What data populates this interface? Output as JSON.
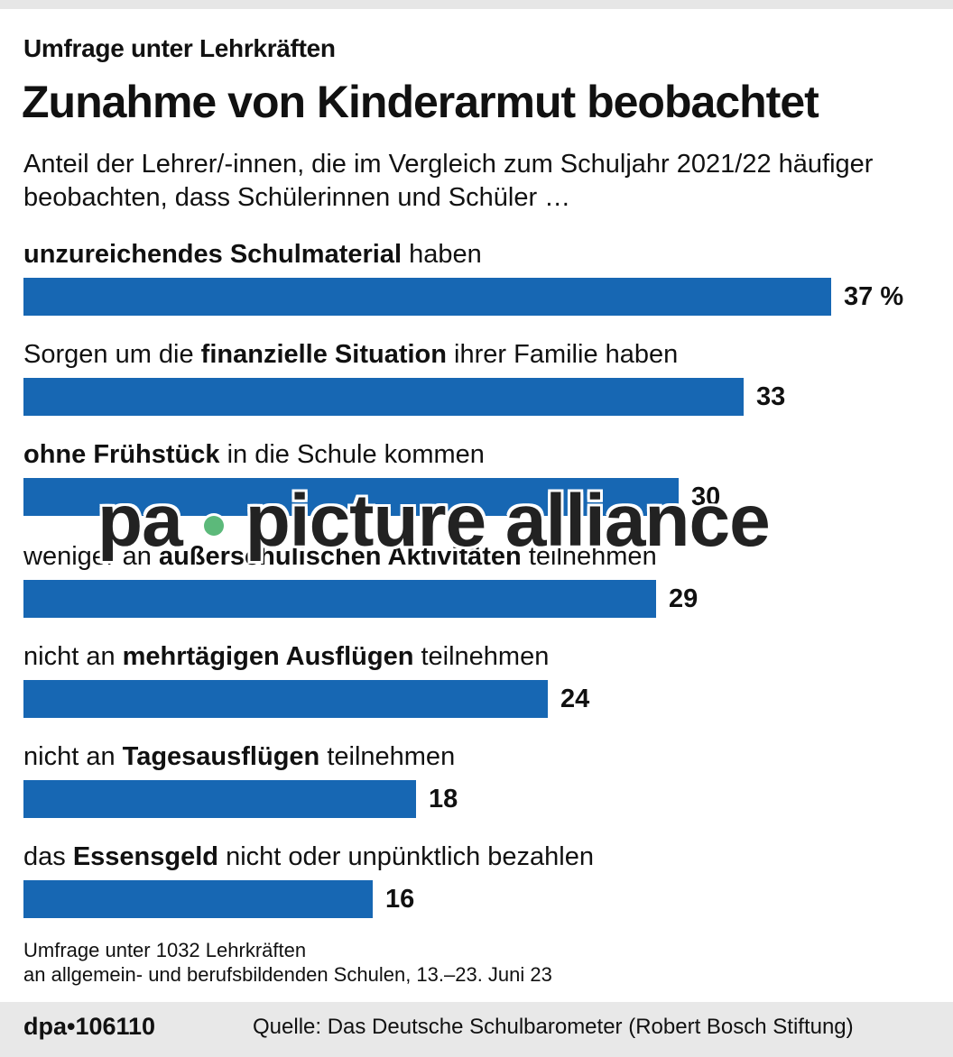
{
  "header": {
    "kicker": "Umfrage unter Lehrkräften",
    "title": "Zunahme von Kinderarmut beobachtet",
    "subtitle": "Anteil der Lehrer/-innen, die im Vergleich zum Schuljahr 2021/22 häufiger beobachten, dass Schülerinnen und Schüler …"
  },
  "rows": [
    {
      "pre": "",
      "bold": "unzureichendes Schulmaterial",
      "post": " haben",
      "value_label": "37 %"
    },
    {
      "pre": "Sorgen um die ",
      "bold": "finanzielle Situation",
      "post": " ihrer Familie haben",
      "value_label": "33"
    },
    {
      "pre": "",
      "bold": "ohne Frühstück",
      "post": " in die Schule kommen",
      "value_label": "30"
    },
    {
      "pre": "weniger an ",
      "bold": "außerschulischen Aktivitäten",
      "post": " teilnehmen",
      "value_label": "29"
    },
    {
      "pre": "nicht an ",
      "bold": "mehrtägigen Ausflügen",
      "post": " teilnehmen",
      "value_label": "24"
    },
    {
      "pre": "nicht an ",
      "bold": "Tagesausflügen",
      "post": " teilnehmen",
      "value_label": "18"
    },
    {
      "pre": "das ",
      "bold": "Essensgeld",
      "post": " nicht oder unpünktlich bezahlen",
      "value_label": "16"
    }
  ],
  "note": {
    "line1": "Umfrage unter 1032 Lehrkräften",
    "line2": "an allgemein- und berufsbildenden Schulen, 13.–23. Juni 23"
  },
  "footer": {
    "id": "dpa•106110",
    "source": "Quelle: Das Deutsche Schulbarometer (Robert Bosch Stiftung)"
  },
  "watermark": {
    "left": "pa",
    "right": "picture alliance"
  },
  "colors": {
    "bar": "#1767b3",
    "footer_bg": "#e8e8e8",
    "watermark_dot": "#5cb97a"
  },
  "chart_data": {
    "type": "bar",
    "orientation": "horizontal",
    "title": "Zunahme von Kinderarmut beobachtet",
    "subtitle": "Anteil der Lehrer/-innen, die im Vergleich zum Schuljahr 2021/22 häufiger beobachten, dass Schülerinnen und Schüler …",
    "categories": [
      "unzureichendes Schulmaterial haben",
      "Sorgen um die finanzielle Situation ihrer Familie haben",
      "ohne Frühstück in die Schule kommen",
      "weniger an außerschulischen Aktivitäten teilnehmen",
      "nicht an mehrtägigen Ausflügen teilnehmen",
      "nicht an Tagesausflügen teilnehmen",
      "das Essensgeld nicht oder unpünktlich bezahlen"
    ],
    "values": [
      37,
      33,
      30,
      29,
      24,
      18,
      16
    ],
    "unit": "%",
    "xlabel": "",
    "ylabel": "",
    "xlim": [
      0,
      37
    ],
    "grid": false,
    "legend": null
  }
}
